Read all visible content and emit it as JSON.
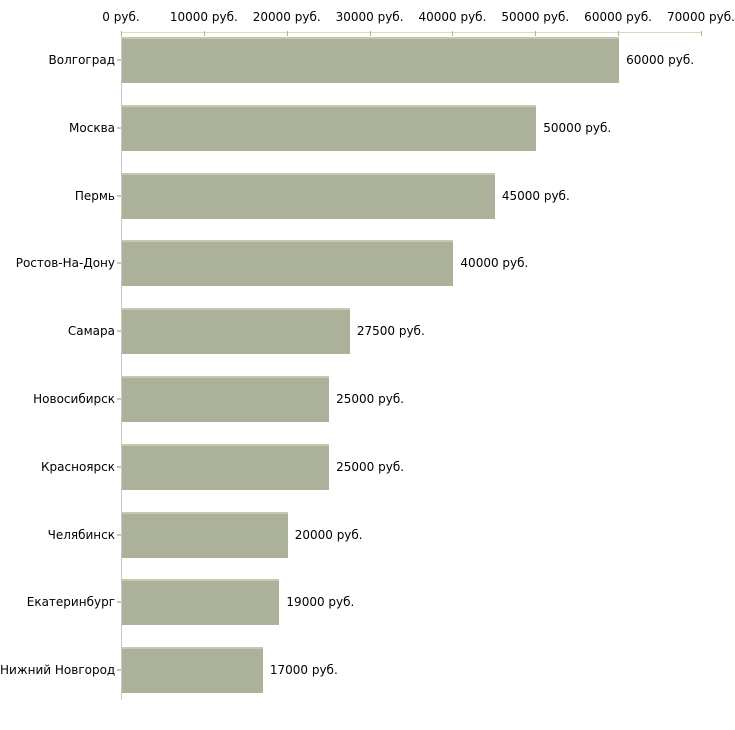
{
  "chart_data": {
    "type": "bar",
    "orientation": "horizontal",
    "title": "",
    "xlabel": "",
    "ylabel": "",
    "xlim": [
      0,
      70000
    ],
    "grid": false,
    "legend": false,
    "x_tick_values": [
      0,
      10000,
      20000,
      30000,
      40000,
      50000,
      60000,
      70000
    ],
    "x_tick_labels": [
      "0 руб.",
      "10000 руб.",
      "20000 руб.",
      "30000 руб.",
      "40000 руб.",
      "50000 руб.",
      "60000 руб.",
      "70000 руб."
    ],
    "categories": [
      "Волгоград",
      "Москва",
      "Пермь",
      "Ростов-На-Дону",
      "Самара",
      "Новосибирск",
      "Красноярск",
      "Челябинск",
      "Екатеринбург",
      "Нижний Новгород"
    ],
    "values": [
      60000,
      50000,
      45000,
      40000,
      27500,
      25000,
      25000,
      20000,
      19000,
      17000
    ],
    "value_labels": [
      "60000 руб.",
      "50000 руб.",
      "45000 руб.",
      "40000 руб.",
      "27500 руб.",
      "25000 руб.",
      "25000 руб.",
      "20000 руб.",
      "19000 руб.",
      "17000 руб."
    ],
    "colors": {
      "bar_fill": "#abb299",
      "bar_top_edge": "#c4c9b0",
      "x_axis_line": "#d9d9c0",
      "x_tick_mark": "#b0b38b",
      "y_axis_line": "#c8c8c8",
      "text": "#000000",
      "background": "#ffffff"
    }
  }
}
